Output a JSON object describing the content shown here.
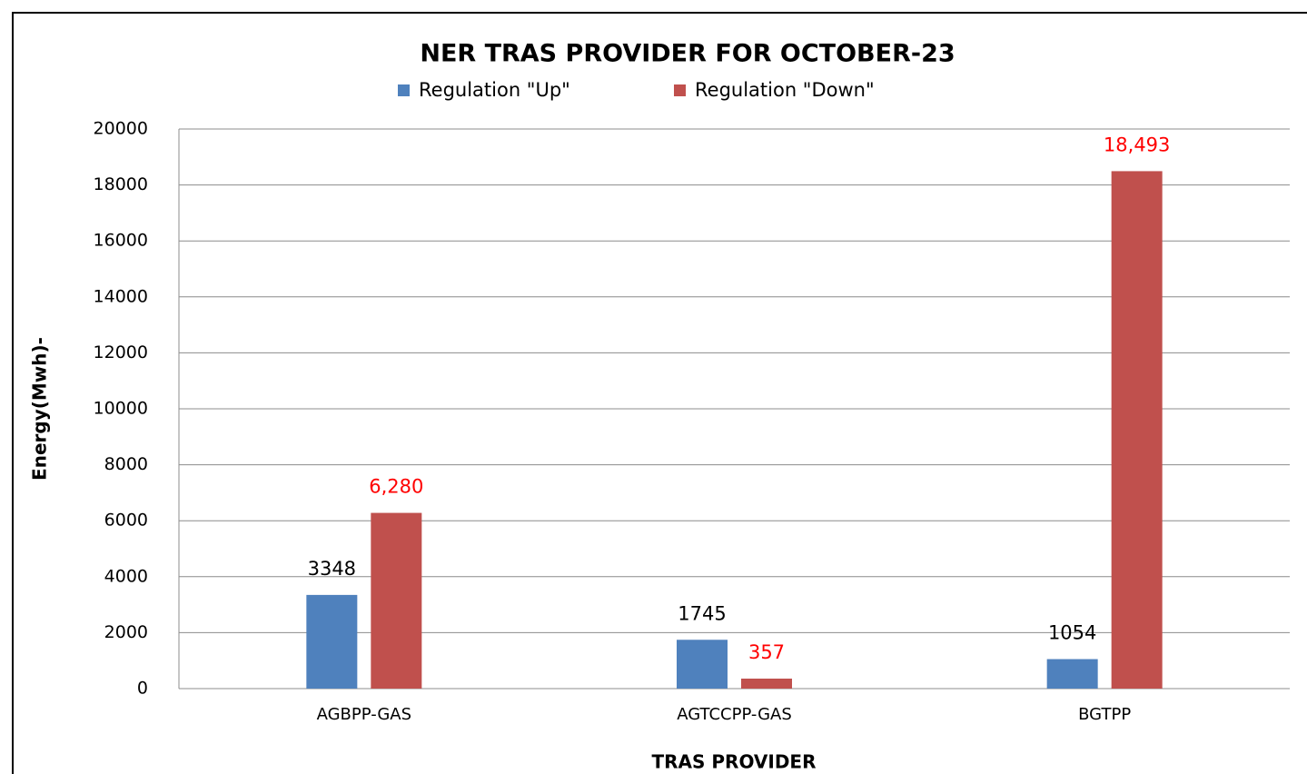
{
  "chart_data": {
    "type": "bar",
    "title": "NER TRAS PROVIDER FOR OCTOBER-23",
    "x_label": "TRAS PROVIDER",
    "y_label": "Energy(Mwh)-",
    "categories": [
      "AGBPP-GAS",
      "AGTCCPP-GAS",
      "BGTPP"
    ],
    "series": [
      {
        "name": "Regulation \"Up\"",
        "color": "#4f81bd",
        "label_color": "#000000",
        "values": [
          3348,
          1745,
          1054
        ]
      },
      {
        "name": "Regulation \"Down\"",
        "color": "#c0504d",
        "label_color": "#ff0000",
        "values": [
          6280,
          357,
          18493
        ],
        "value_labels": [
          "6,280",
          "357",
          "18,493"
        ]
      }
    ],
    "ylim": [
      0,
      20000
    ],
    "yticks": [
      0,
      2000,
      4000,
      6000,
      8000,
      10000,
      12000,
      14000,
      16000,
      18000,
      20000
    ],
    "grid": true,
    "legend": "top"
  }
}
